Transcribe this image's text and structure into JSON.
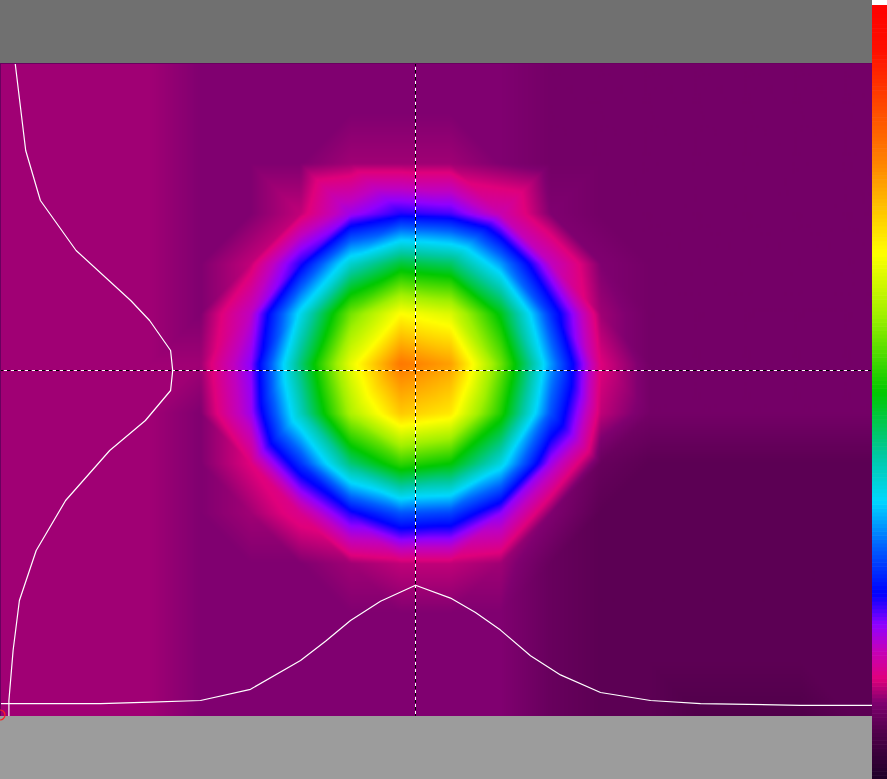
{
  "chart_data": {
    "type": "heatmap",
    "tick_labels": false,
    "xlim": [
      0,
      872
    ],
    "ylim": [
      0,
      653
    ],
    "x": [
      0,
      50,
      100,
      150,
      200,
      250,
      300,
      350,
      400,
      450,
      500,
      550,
      600,
      650,
      700,
      750,
      800,
      850,
      872
    ],
    "y": [
      0,
      50,
      100,
      150,
      200,
      250,
      300,
      350,
      400,
      450,
      500,
      550,
      600,
      653
    ],
    "values": [
      [
        11,
        11,
        11,
        11,
        10,
        10,
        10,
        10,
        10,
        10,
        10,
        9,
        9,
        9,
        9,
        9,
        9,
        9,
        9
      ],
      [
        11,
        11,
        11,
        11,
        10,
        10,
        10,
        10,
        10,
        10,
        10,
        9,
        9,
        9,
        9,
        9,
        9,
        9,
        9
      ],
      [
        11,
        11,
        11,
        11,
        10,
        10,
        10,
        11,
        11,
        11,
        10,
        9,
        9,
        9,
        9,
        9,
        9,
        9,
        9
      ],
      [
        11,
        11,
        11,
        11,
        10,
        10,
        12,
        19,
        23,
        22,
        16,
        10,
        9,
        9,
        9,
        9,
        9,
        9,
        9
      ],
      [
        11,
        11,
        11,
        11,
        10,
        12,
        23,
        39,
        47,
        45,
        33,
        17,
        10,
        9,
        9,
        9,
        9,
        9,
        9
      ],
      [
        11,
        11,
        11,
        11,
        10,
        17,
        37,
        57,
        68,
        65,
        49,
        27,
        11,
        9,
        9,
        9,
        9,
        9,
        9
      ],
      [
        11,
        11,
        11,
        11,
        11,
        20,
        44,
        66,
        81,
        77,
        57,
        33,
        13,
        9,
        9,
        9,
        9,
        9,
        9
      ],
      [
        11,
        11,
        11,
        11,
        10,
        19,
        40,
        61,
        73,
        70,
        52,
        29,
        12,
        9,
        9,
        9,
        9,
        9,
        9
      ],
      [
        11,
        11,
        11,
        11,
        10,
        13,
        27,
        44,
        53,
        50,
        38,
        19,
        8,
        7,
        7,
        7,
        7,
        7,
        7
      ],
      [
        11,
        11,
        11,
        11,
        10,
        11,
        14,
        23,
        29,
        28,
        20,
        10,
        7,
        7,
        7,
        7,
        7,
        7,
        7
      ],
      [
        11,
        11,
        11,
        11,
        10,
        10,
        10,
        11,
        12,
        12,
        11,
        8,
        7,
        7,
        7,
        7,
        7,
        7,
        7
      ],
      [
        11,
        11,
        11,
        11,
        10,
        10,
        10,
        10,
        10,
        10,
        10,
        8,
        7,
        7,
        7,
        7,
        7,
        7,
        7
      ],
      [
        11,
        11,
        11,
        11,
        10,
        10,
        10,
        10,
        10,
        10,
        10,
        8,
        7,
        7,
        7,
        7,
        7,
        7,
        7
      ],
      [
        11,
        11,
        11,
        11,
        10,
        10,
        10,
        10,
        10,
        10,
        10,
        8,
        7,
        7,
        6,
        6,
        6,
        7,
        7
      ]
    ],
    "colorbar": {
      "range": [
        0,
        100
      ]
    },
    "crosshair": {
      "x": 415,
      "y": 307
    },
    "profiles": {
      "horizontal": {
        "x": [
          0,
          100,
          150,
          200,
          250,
          300,
          325,
          350,
          380,
          415,
          450,
          475,
          500,
          530,
          560,
          600,
          650,
          700,
          800,
          872
        ],
        "values": [
          8,
          8,
          9,
          10,
          17,
          35,
          47,
          60,
          72,
          82,
          74,
          65,
          54,
          38,
          26,
          15,
          10,
          8,
          7,
          7
        ]
      },
      "vertical": {
        "y": [
          0,
          87,
          137,
          187,
          237,
          257,
          287,
          307,
          327,
          357,
          387,
          437,
          487,
          537,
          587,
          637,
          653
        ],
        "values": [
          7,
          12,
          19,
          36,
          62,
          71,
          81,
          82,
          81,
          69,
          52,
          31,
          17,
          9,
          6,
          4,
          4
        ]
      }
    }
  }
}
